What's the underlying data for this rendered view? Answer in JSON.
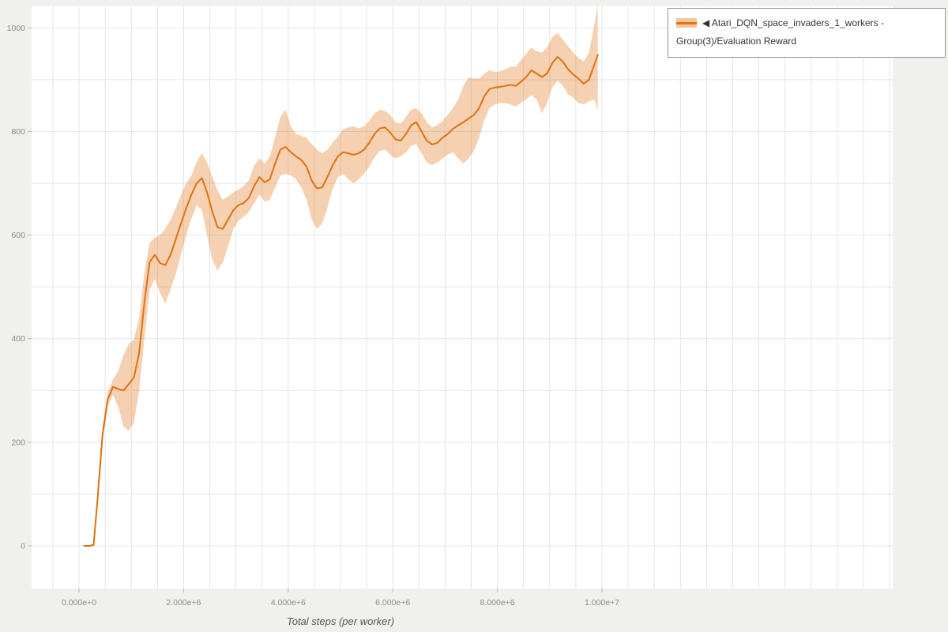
{
  "legend": {
    "label": "◀ Atari_DQN_space_invaders_1_workers - Group(3)/Evaluation Reward"
  },
  "chart_data": {
    "type": "line",
    "title": "",
    "xlabel": "Total steps (per worker)",
    "ylabel": "",
    "grid": true,
    "legend_position": "top-right",
    "series_name": "Atari_DQN_space_invaders_1_workers - Group(3)/Evaluation Reward",
    "color": "#e0710f",
    "band_opacity": 0.32,
    "x_tick_labels": [
      "0.000e+0",
      "2.000e+6",
      "4.000e+6",
      "6.000e+6",
      "8.000e+6",
      "1.000e+7"
    ],
    "x_tick_values_steps": [
      0,
      2000000,
      4000000,
      6000000,
      8000000,
      10000000
    ],
    "y_ticks": [
      0,
      200,
      400,
      600,
      800,
      1000
    ],
    "xlim_steps": [
      0,
      10000000
    ],
    "ylim": [
      -80,
      1050
    ],
    "x_steps_millions": [
      0.1,
      0.2,
      0.28,
      0.35,
      0.45,
      0.55,
      0.65,
      0.75,
      0.85,
      0.95,
      1.05,
      1.15,
      1.25,
      1.35,
      1.45,
      1.55,
      1.65,
      1.75,
      1.85,
      1.95,
      2.05,
      2.15,
      2.25,
      2.35,
      2.45,
      2.55,
      2.65,
      2.75,
      2.85,
      2.95,
      3.05,
      3.15,
      3.25,
      3.35,
      3.45,
      3.55,
      3.65,
      3.75,
      3.85,
      3.95,
      4.05,
      4.15,
      4.25,
      4.35,
      4.45,
      4.55,
      4.65,
      4.75,
      4.85,
      4.95,
      5.05,
      5.15,
      5.25,
      5.35,
      5.45,
      5.55,
      5.65,
      5.75,
      5.85,
      5.95,
      6.05,
      6.15,
      6.25,
      6.35,
      6.45,
      6.55,
      6.65,
      6.75,
      6.85,
      6.95,
      7.05,
      7.15,
      7.25,
      7.35,
      7.45,
      7.55,
      7.65,
      7.75,
      7.85,
      7.95,
      8.05,
      8.15,
      8.25,
      8.35,
      8.45,
      8.55,
      8.65,
      8.75,
      8.85,
      8.95,
      9.05,
      9.15,
      9.25,
      9.35,
      9.45,
      9.55,
      9.65,
      9.75,
      9.85,
      9.92
    ],
    "mean": [
      0,
      0,
      2,
      85,
      215,
      283,
      307,
      303,
      300,
      312,
      325,
      372,
      470,
      548,
      562,
      546,
      542,
      562,
      592,
      622,
      652,
      678,
      700,
      710,
      682,
      645,
      615,
      612,
      630,
      648,
      658,
      662,
      672,
      695,
      712,
      702,
      708,
      738,
      765,
      770,
      760,
      752,
      745,
      732,
      705,
      690,
      692,
      712,
      735,
      752,
      760,
      758,
      755,
      758,
      765,
      778,
      795,
      806,
      808,
      798,
      785,
      782,
      795,
      812,
      818,
      800,
      782,
      775,
      778,
      788,
      795,
      805,
      812,
      818,
      825,
      832,
      845,
      868,
      882,
      885,
      886,
      888,
      890,
      888,
      896,
      905,
      918,
      912,
      905,
      912,
      932,
      944,
      935,
      920,
      910,
      902,
      892,
      900,
      928,
      948
    ],
    "band_low": [
      0,
      0,
      0,
      70,
      200,
      270,
      292,
      268,
      230,
      222,
      238,
      300,
      400,
      495,
      515,
      488,
      468,
      495,
      525,
      562,
      600,
      632,
      658,
      648,
      598,
      552,
      532,
      548,
      578,
      612,
      628,
      635,
      645,
      662,
      678,
      665,
      668,
      692,
      715,
      718,
      715,
      708,
      692,
      668,
      630,
      612,
      622,
      652,
      690,
      712,
      718,
      708,
      700,
      708,
      718,
      732,
      750,
      762,
      765,
      755,
      748,
      752,
      760,
      772,
      775,
      758,
      740,
      735,
      740,
      748,
      755,
      760,
      748,
      738,
      748,
      762,
      788,
      822,
      845,
      852,
      855,
      855,
      852,
      848,
      855,
      862,
      870,
      862,
      835,
      855,
      885,
      898,
      888,
      872,
      865,
      855,
      852,
      858,
      862,
      842
    ],
    "band_high": [
      0,
      0,
      4,
      100,
      230,
      296,
      322,
      338,
      368,
      390,
      398,
      440,
      528,
      585,
      595,
      600,
      612,
      630,
      652,
      678,
      700,
      715,
      742,
      758,
      740,
      712,
      686,
      668,
      675,
      682,
      688,
      695,
      706,
      735,
      748,
      738,
      752,
      790,
      828,
      842,
      810,
      795,
      792,
      788,
      775,
      765,
      758,
      765,
      778,
      790,
      805,
      808,
      810,
      806,
      810,
      820,
      835,
      842,
      840,
      832,
      818,
      815,
      828,
      842,
      845,
      835,
      818,
      808,
      812,
      820,
      832,
      845,
      862,
      888,
      905,
      902,
      902,
      912,
      918,
      915,
      916,
      920,
      925,
      925,
      938,
      950,
      962,
      955,
      952,
      962,
      982,
      990,
      978,
      965,
      952,
      942,
      935,
      952,
      1005,
      1045
    ]
  }
}
